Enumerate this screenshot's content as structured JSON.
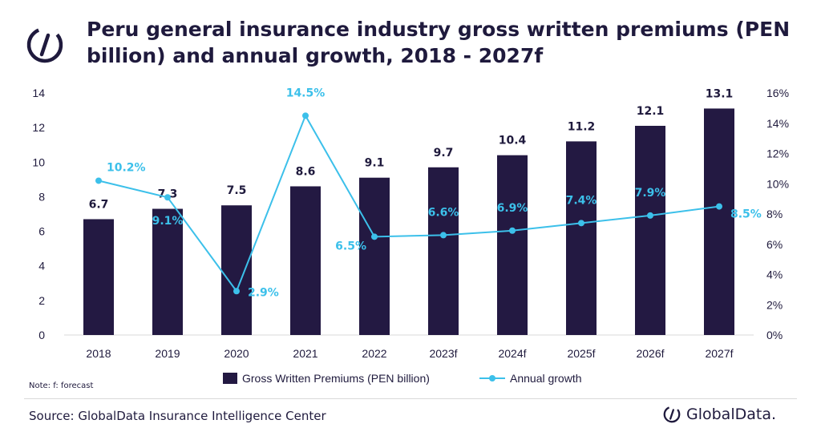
{
  "title": "Peru general insurance industry gross written premiums (PEN billion) and annual growth, 2018 - 2027f",
  "note": "Note: f: forecast",
  "source": "Source: GlobalData Insurance Intelligence Center",
  "brand": "GlobalData.",
  "colors": {
    "bar": "#231942",
    "line": "#3cc0ea",
    "text": "#1f1a3d"
  },
  "chart_data": {
    "type": "bar",
    "categories": [
      "2018",
      "2019",
      "2020",
      "2021",
      "2022",
      "2023f",
      "2024f",
      "2025f",
      "2026f",
      "2027f"
    ],
    "series": [
      {
        "name": "Gross Written Premiums (PEN billion)",
        "type": "bar",
        "axis": "left",
        "values": [
          6.7,
          7.3,
          7.5,
          8.6,
          9.1,
          9.7,
          10.4,
          11.2,
          12.1,
          13.1
        ],
        "labels": [
          "6.7",
          "7.3",
          "7.5",
          "8.6",
          "9.1",
          "9.7",
          "10.4",
          "11.2",
          "12.1",
          "13.1"
        ]
      },
      {
        "name": "Annual growth",
        "type": "line",
        "axis": "right",
        "values": [
          10.2,
          9.1,
          2.9,
          14.5,
          6.5,
          6.6,
          6.9,
          7.4,
          7.9,
          8.5
        ],
        "labels": [
          "10.2%",
          "9.1%",
          "2.9%",
          "14.5%",
          "6.5%",
          "6.6%",
          "6.9%",
          "7.4%",
          "7.9%",
          "8.5%"
        ]
      }
    ],
    "y_left": {
      "ylim": [
        0,
        14
      ],
      "ticks": [
        "0",
        "2",
        "4",
        "6",
        "8",
        "10",
        "12",
        "14"
      ]
    },
    "y_right": {
      "ylim": [
        0,
        16
      ],
      "ticks": [
        "0%",
        "2%",
        "4%",
        "6%",
        "8%",
        "10%",
        "12%",
        "14%",
        "16%"
      ]
    },
    "legend": {
      "placement": "bottom",
      "entries": [
        "Gross Written Premiums (PEN billion)",
        "Annual growth"
      ]
    },
    "grid": false
  }
}
